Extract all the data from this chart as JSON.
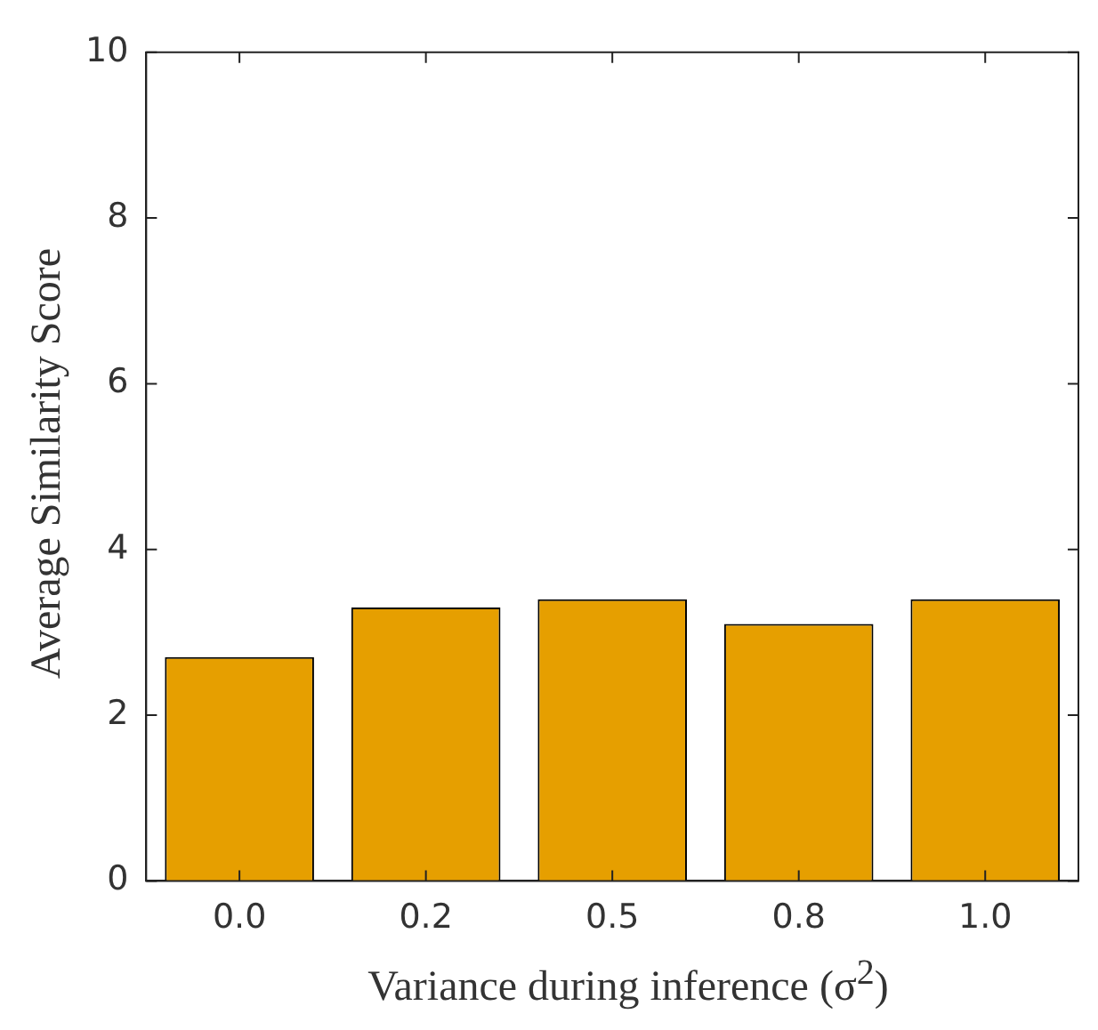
{
  "chart_data": {
    "type": "bar",
    "xlabel": "Variance during inference (σ$^{2}$)",
    "ylabel": "Average Similarity Score",
    "categories": [
      "0.0",
      "0.2",
      "0.5",
      "0.8",
      "1.0"
    ],
    "values": [
      2.7,
      3.3,
      3.4,
      3.1,
      3.4
    ],
    "color": "#e69f00",
    "ylim": [
      0,
      10
    ],
    "yticks": [
      0,
      2,
      4,
      6,
      8,
      10
    ],
    "grid": false,
    "legend": false
  }
}
